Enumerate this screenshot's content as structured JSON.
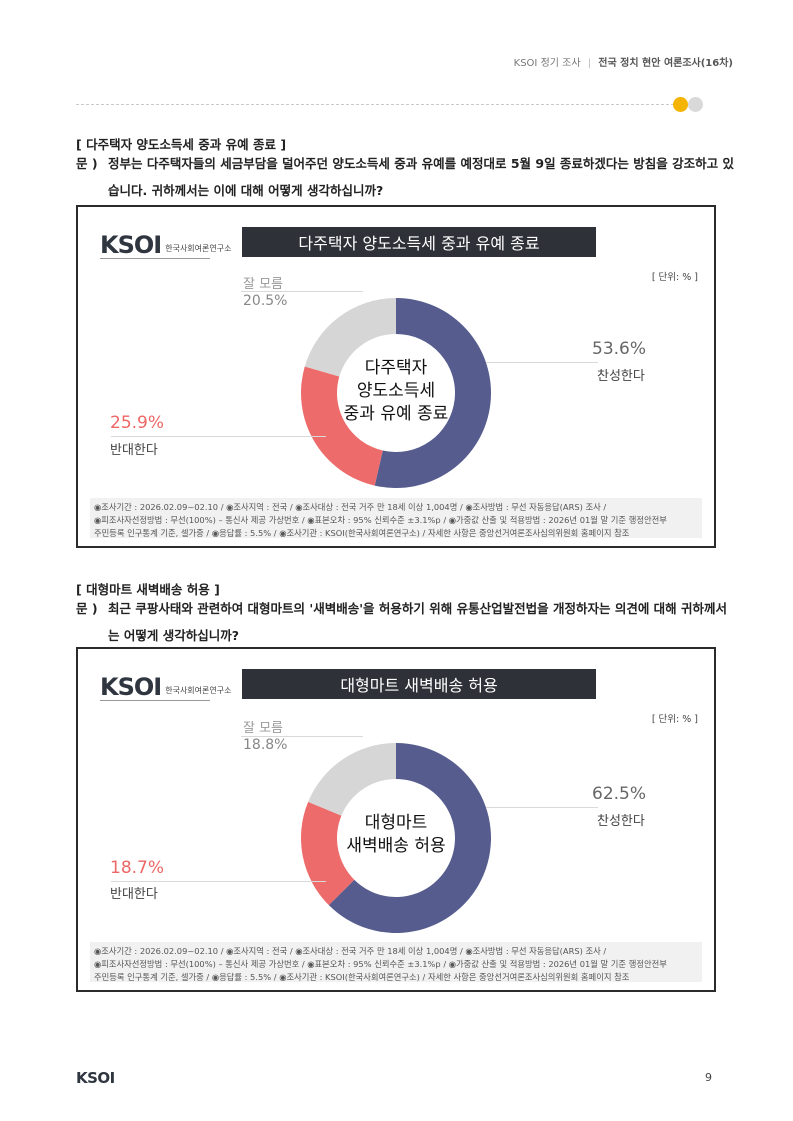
{
  "header": {
    "org": "KSOI",
    "survey_type": "정기 조사",
    "separator": "|",
    "survey_title": "전국 정치 현안 여론조사(16차)"
  },
  "colors": {
    "agree": "#565c8e",
    "disagree": "#ee6b6b",
    "unknown": "#d6d6d6",
    "accent_dot": "#f4b400"
  },
  "sections": [
    {
      "title": "[ 다주택자 양도소득세 중과 유예 종료 ]",
      "q_mark": "문 )",
      "question": "정부는 다주택자들의 세금부담을 덜어주던 양도소득세 중과 유예를 예정대로 5월 9일 종료하겠다는 방침을 강조하고 있습니다. 귀하께서는 이에 대해 어떻게 생각하십니까?",
      "logo_text": "KSOI",
      "logo_org": "한국사회여론연구소",
      "banner": "다주택자 양도소득세 중과 유예 종료",
      "unit": "[ 단위: % ]",
      "center_lines": [
        "다주택자",
        "양도소득세",
        "중과 유예 종료"
      ],
      "labels": {
        "agree_pct": "53.6%",
        "agree_name": "찬성한다",
        "disagree_pct": "25.9%",
        "disagree_name": "반대한다",
        "unknown_name": "잘 모름",
        "unknown_pct": "20.5%"
      },
      "notes": [
        "◉조사기간 : 2026.02.09~02.10 / ◉조사지역 : 전국 / ◉조사대상 : 전국 거주 만 18세 이상 1,004명 / ◉조사방법 : 무선 자동응답(ARS) 조사 /",
        "◉피조사자선정방법 : 무선(100%) – 통신사 제공 가상번호 / ◉표본오차 : 95% 신뢰수준 ±3.1%p / ◉가중값 산출 및 적용방법 : 2026년 01월 말 기준 행정안전부",
        "주민등록 인구통계 기준, 셀가중 / ◉응답률 : 5.5% / ◉조사기관 : KSOI(한국사회여론연구소) / 자세한 사항은 중앙선거여론조사심의위원회 홈페이지 참조"
      ]
    },
    {
      "title": "[ 대형마트 새벽배송 허용 ]",
      "q_mark": "문 )",
      "question": "최근 쿠팡사태와 관련하여 대형마트의 '새벽배송'을 허용하기 위해 유통산업발전법을 개정하자는 의견에 대해 귀하께서는 어떻게 생각하십니까?",
      "logo_text": "KSOI",
      "logo_org": "한국사회여론연구소",
      "banner": "대형마트 새벽배송 허용",
      "unit": "[ 단위: % ]",
      "center_lines": [
        "대형마트",
        "새벽배송 허용"
      ],
      "labels": {
        "agree_pct": "62.5%",
        "agree_name": "찬성한다",
        "disagree_pct": "18.7%",
        "disagree_name": "반대한다",
        "unknown_name": "잘 모름",
        "unknown_pct": "18.8%"
      },
      "notes": [
        "◉조사기간 : 2026.02.09~02.10 / ◉조사지역 : 전국 / ◉조사대상 : 전국 거주 만 18세 이상 1,004명 / ◉조사방법 : 무선 자동응답(ARS) 조사 /",
        "◉피조사자선정방법 : 무선(100%) – 통신사 제공 가상번호 / ◉표본오차 : 95% 신뢰수준 ±3.1%p / ◉가중값 산출 및 적용방법 : 2026년 01월 말 기준 행정안전부",
        "주민등록 인구통계 기준, 셀가중 / ◉응답률 : 5.5% / ◉조사기관 : KSOI(한국사회여론연구소) / 자세한 사항은 중앙선거여론조사심의위원회 홈페이지 참조"
      ]
    }
  ],
  "chart_data": [
    {
      "type": "pie",
      "title": "다주택자 양도소득세 중과 유예 종료",
      "categories": [
        "찬성한다",
        "반대한다",
        "잘 모름"
      ],
      "values": [
        53.6,
        25.9,
        20.5
      ],
      "unit": "%",
      "legend": "none"
    },
    {
      "type": "pie",
      "title": "대형마트 새벽배송 허용",
      "categories": [
        "찬성한다",
        "반대한다",
        "잘 모름"
      ],
      "values": [
        62.5,
        18.7,
        18.8
      ],
      "unit": "%",
      "legend": "none"
    }
  ],
  "footer": {
    "logo": "KSOI",
    "page": "9"
  }
}
